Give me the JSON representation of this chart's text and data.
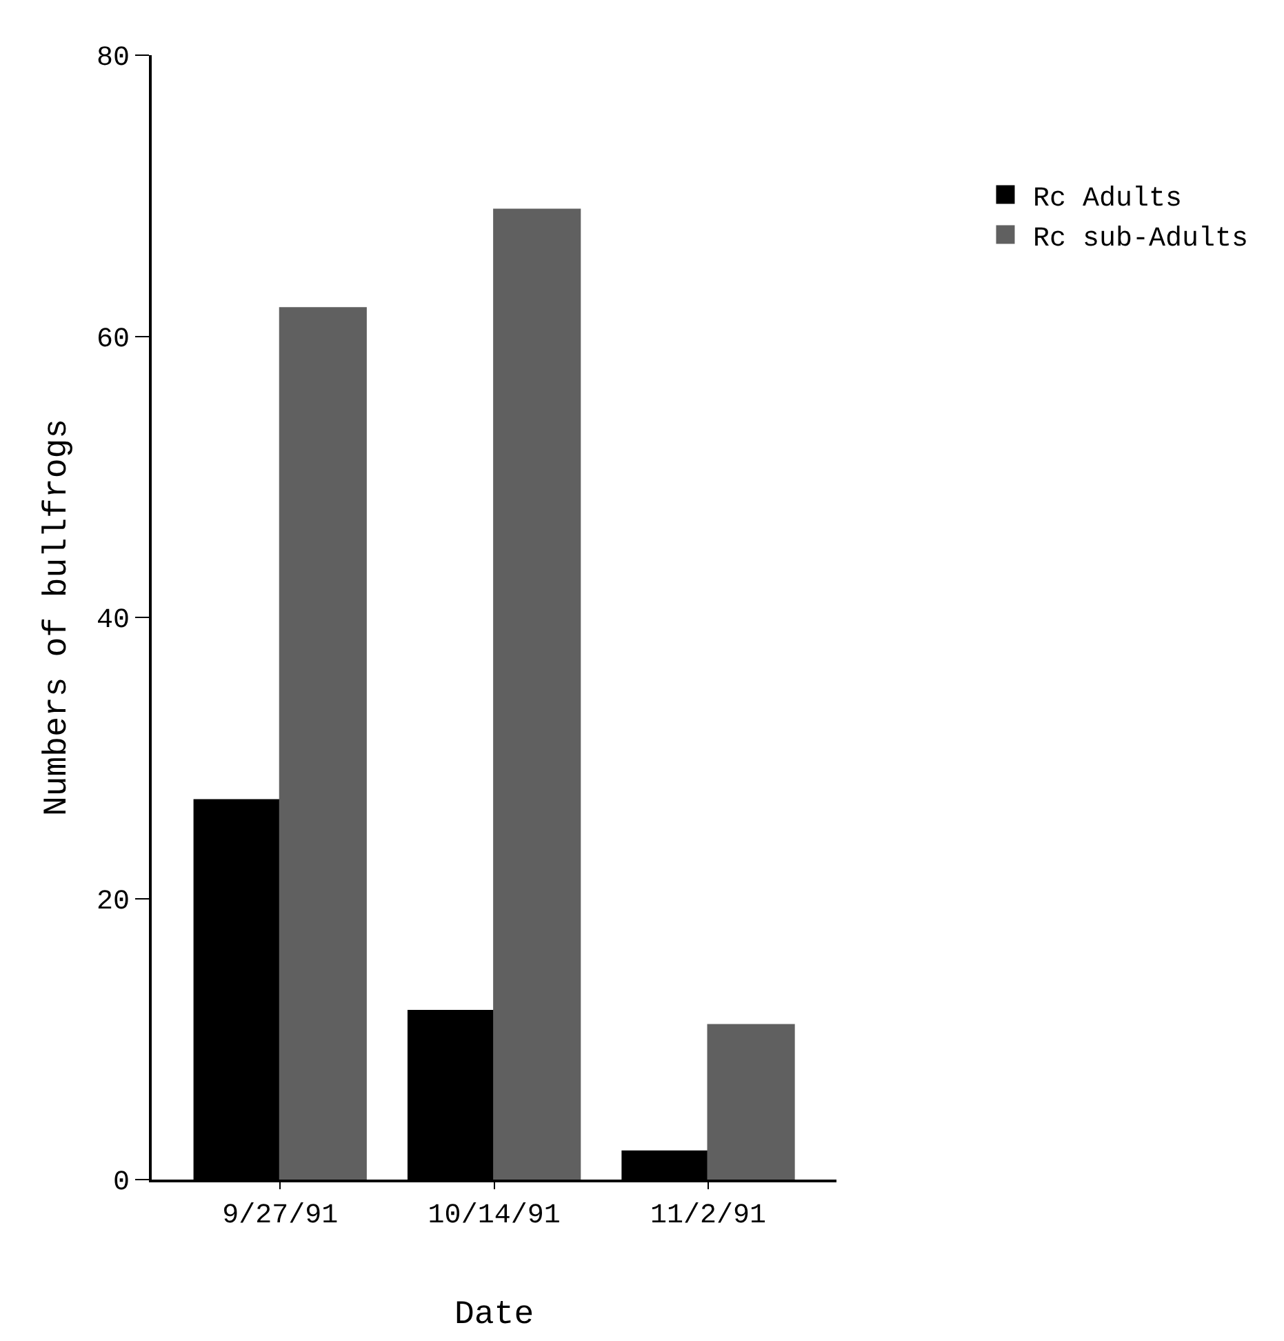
{
  "chart_data": {
    "type": "bar",
    "xlabel": "Date",
    "ylabel": "Numbers of bullfrogs",
    "categories": [
      "9/27/91",
      "10/14/91",
      "11/2/91"
    ],
    "series": [
      {
        "name": "Rc Adults",
        "color": "#000000",
        "values": [
          27,
          12,
          2
        ]
      },
      {
        "name": "Rc sub-Adults",
        "color": "#606060",
        "values": [
          62,
          69,
          11
        ]
      }
    ],
    "ylim": [
      0,
      80
    ],
    "yticks": [
      0,
      20,
      40,
      60,
      80
    ],
    "legend": "top right"
  }
}
